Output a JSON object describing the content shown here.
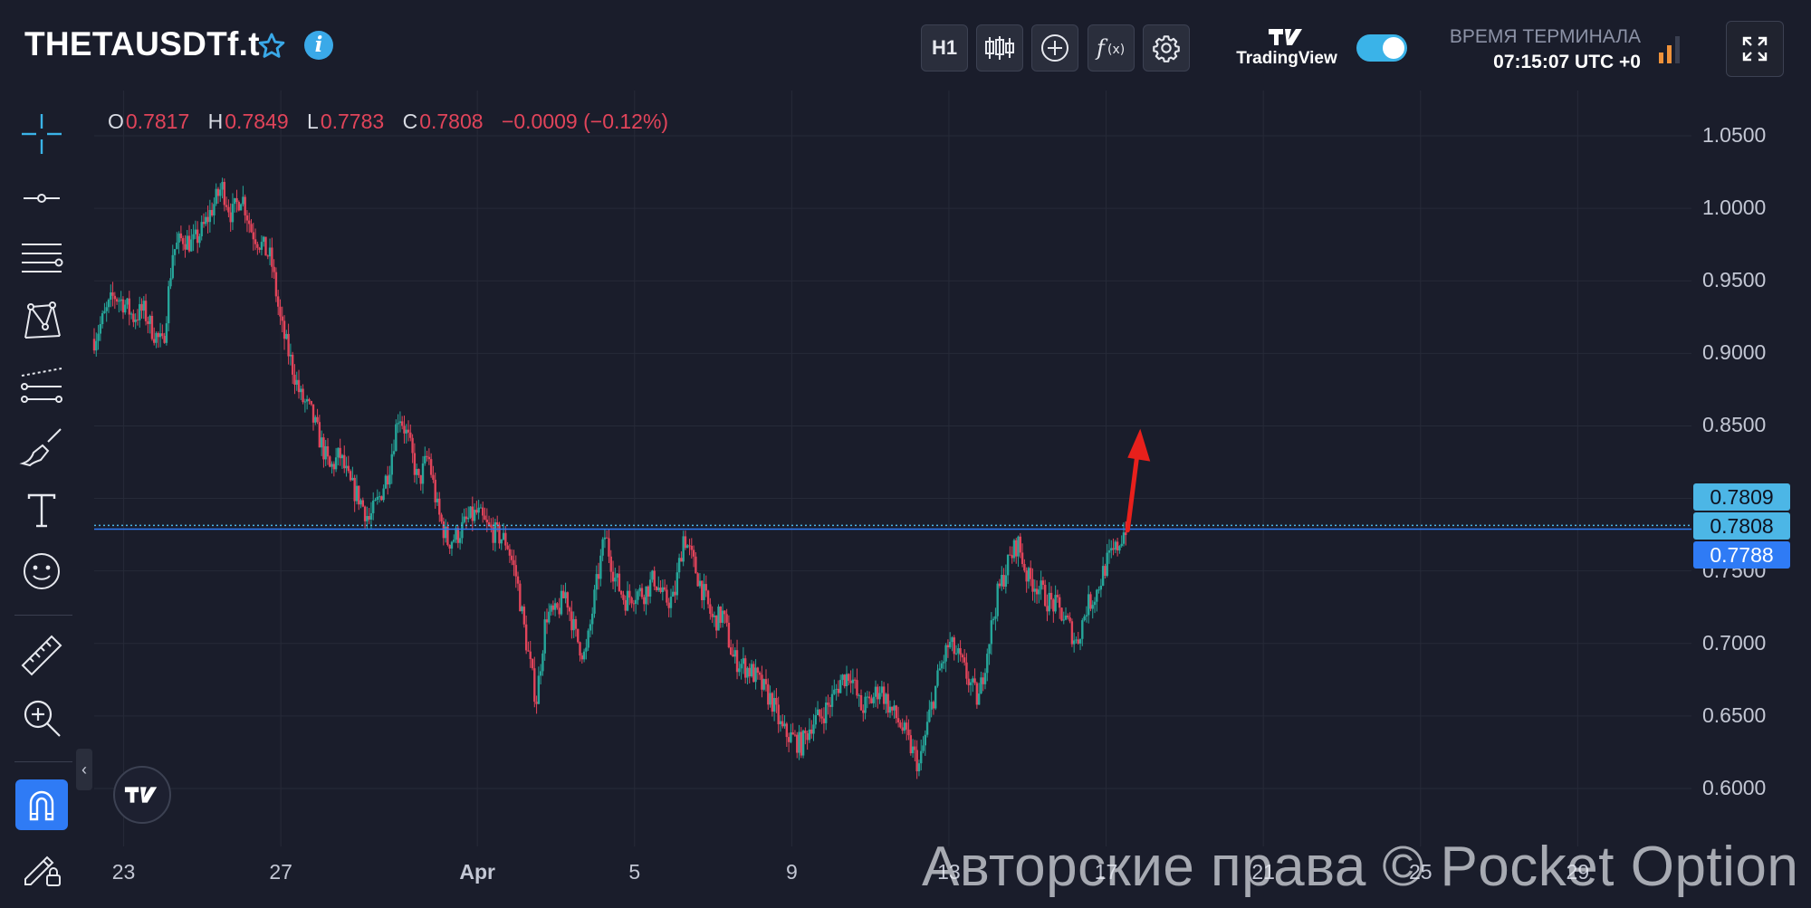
{
  "header": {
    "symbol": "THETAUSDTf.t",
    "timeframe_label": "H1",
    "brand": "TradingView",
    "terminal_label": "ВРЕМЯ ТЕРМИНАЛА",
    "terminal_time": "07:15:07 UTC +0",
    "toggle_on": true,
    "icons": [
      "star-icon",
      "info-icon",
      "candles-icon",
      "add-indicator-icon",
      "formula-icon",
      "gear-icon",
      "signal-icon",
      "fullscreen-icon"
    ]
  },
  "toolbar": {
    "tools": [
      "crosshair-icon",
      "horizontal-line-icon",
      "fib-lines-icon",
      "pattern-icon",
      "parallel-channel-icon",
      "brush-icon",
      "text-icon",
      "emoji-icon",
      "ruler-icon",
      "zoom-in-icon",
      "magnet-icon",
      "lock-drawings-icon"
    ]
  },
  "ohlc": {
    "o_label": "O",
    "o": "0.7817",
    "h_label": "H",
    "h": "0.7849",
    "l_label": "L",
    "l": "0.7783",
    "c_label": "C",
    "c": "0.7808",
    "change": "−0.0009 (−0.12%)"
  },
  "price_tags": {
    "top": "0.7809",
    "current": "0.7808",
    "bottom": "0.7788"
  },
  "y_axis": [
    "1.0500",
    "1.0000",
    "0.9500",
    "0.9000",
    "0.8500",
    "0.8000",
    "0.7500",
    "0.7000",
    "0.6500",
    "0.6000"
  ],
  "x_axis": [
    "23",
    "27",
    "Apr",
    "5",
    "9",
    "13",
    "17",
    "21",
    "25",
    "29"
  ],
  "watermark": "Авторские права © Pocket Option",
  "colors": {
    "up": "#26a69a",
    "down": "#e1445a",
    "accent": "#3ab3e8",
    "background": "#1a1d2b"
  },
  "chart_data": {
    "type": "candlestick",
    "interval": "H1",
    "ylim": [
      0.58,
      1.06
    ],
    "current_price": 0.7808,
    "path": [
      [
        0,
        0.91
      ],
      [
        2,
        0.94
      ],
      [
        3,
        0.935
      ],
      [
        4,
        0.925
      ],
      [
        5,
        0.93
      ],
      [
        6,
        0.915
      ],
      [
        7,
        0.905
      ],
      [
        8,
        0.97
      ],
      [
        9,
        0.98
      ],
      [
        10,
        0.975
      ],
      [
        11,
        0.985
      ],
      [
        12,
        1.0
      ],
      [
        13,
        1.015
      ],
      [
        14,
        0.995
      ],
      [
        15,
        1.01
      ],
      [
        16,
        0.985
      ],
      [
        17,
        0.975
      ],
      [
        18,
        0.965
      ],
      [
        19,
        0.92
      ],
      [
        20,
        0.895
      ],
      [
        21,
        0.87
      ],
      [
        22,
        0.86
      ],
      [
        23,
        0.84
      ],
      [
        24,
        0.82
      ],
      [
        25,
        0.83
      ],
      [
        26,
        0.81
      ],
      [
        27,
        0.8
      ],
      [
        28,
        0.785
      ],
      [
        29,
        0.8
      ],
      [
        30,
        0.82
      ],
      [
        31,
        0.86
      ],
      [
        32,
        0.84
      ],
      [
        33,
        0.81
      ],
      [
        34,
        0.83
      ],
      [
        35,
        0.79
      ],
      [
        36,
        0.77
      ],
      [
        37,
        0.775
      ],
      [
        38,
        0.785
      ],
      [
        39,
        0.79
      ],
      [
        40,
        0.78
      ],
      [
        41,
        0.775
      ],
      [
        42,
        0.77
      ],
      [
        43,
        0.745
      ],
      [
        44,
        0.7
      ],
      [
        45,
        0.66
      ],
      [
        46,
        0.72
      ],
      [
        47,
        0.72
      ],
      [
        48,
        0.735
      ],
      [
        49,
        0.705
      ],
      [
        50,
        0.69
      ],
      [
        51,
        0.735
      ],
      [
        52,
        0.775
      ],
      [
        53,
        0.745
      ],
      [
        54,
        0.73
      ],
      [
        55,
        0.735
      ],
      [
        56,
        0.735
      ],
      [
        57,
        0.745
      ],
      [
        58,
        0.73
      ],
      [
        59,
        0.73
      ],
      [
        60,
        0.775
      ],
      [
        61,
        0.755
      ],
      [
        62,
        0.735
      ],
      [
        63,
        0.715
      ],
      [
        64,
        0.72
      ],
      [
        65,
        0.69
      ],
      [
        66,
        0.685
      ],
      [
        67,
        0.68
      ],
      [
        68,
        0.67
      ],
      [
        69,
        0.66
      ],
      [
        70,
        0.64
      ],
      [
        71,
        0.635
      ],
      [
        72,
        0.63
      ],
      [
        73,
        0.645
      ],
      [
        74,
        0.65
      ],
      [
        75,
        0.66
      ],
      [
        76,
        0.675
      ],
      [
        77,
        0.68
      ],
      [
        78,
        0.655
      ],
      [
        79,
        0.66
      ],
      [
        80,
        0.67
      ],
      [
        81,
        0.655
      ],
      [
        82,
        0.645
      ],
      [
        83,
        0.63
      ],
      [
        84,
        0.615
      ],
      [
        85,
        0.65
      ],
      [
        86,
        0.68
      ],
      [
        87,
        0.7
      ],
      [
        88,
        0.69
      ],
      [
        89,
        0.675
      ],
      [
        90,
        0.66
      ],
      [
        91,
        0.7
      ],
      [
        92,
        0.735
      ],
      [
        93,
        0.755
      ],
      [
        94,
        0.77
      ],
      [
        95,
        0.745
      ],
      [
        96,
        0.74
      ],
      [
        97,
        0.73
      ],
      [
        98,
        0.725
      ],
      [
        99,
        0.715
      ],
      [
        100,
        0.7
      ],
      [
        101,
        0.725
      ],
      [
        102,
        0.735
      ],
      [
        103,
        0.755
      ],
      [
        104,
        0.765
      ],
      [
        105,
        0.78
      ]
    ],
    "x_ticks": [
      {
        "label": "23",
        "x": 3
      },
      {
        "label": "27",
        "x": 19
      },
      {
        "label": "Apr",
        "x": 39
      },
      {
        "label": "5",
        "x": 55
      },
      {
        "label": "9",
        "x": 71
      },
      {
        "label": "13",
        "x": 87
      },
      {
        "label": "17",
        "x": 103
      },
      {
        "label": "21",
        "x": 119
      },
      {
        "label": "25",
        "x": 135
      },
      {
        "label": "29",
        "x": 151
      }
    ],
    "x_range": [
      0,
      160
    ]
  }
}
